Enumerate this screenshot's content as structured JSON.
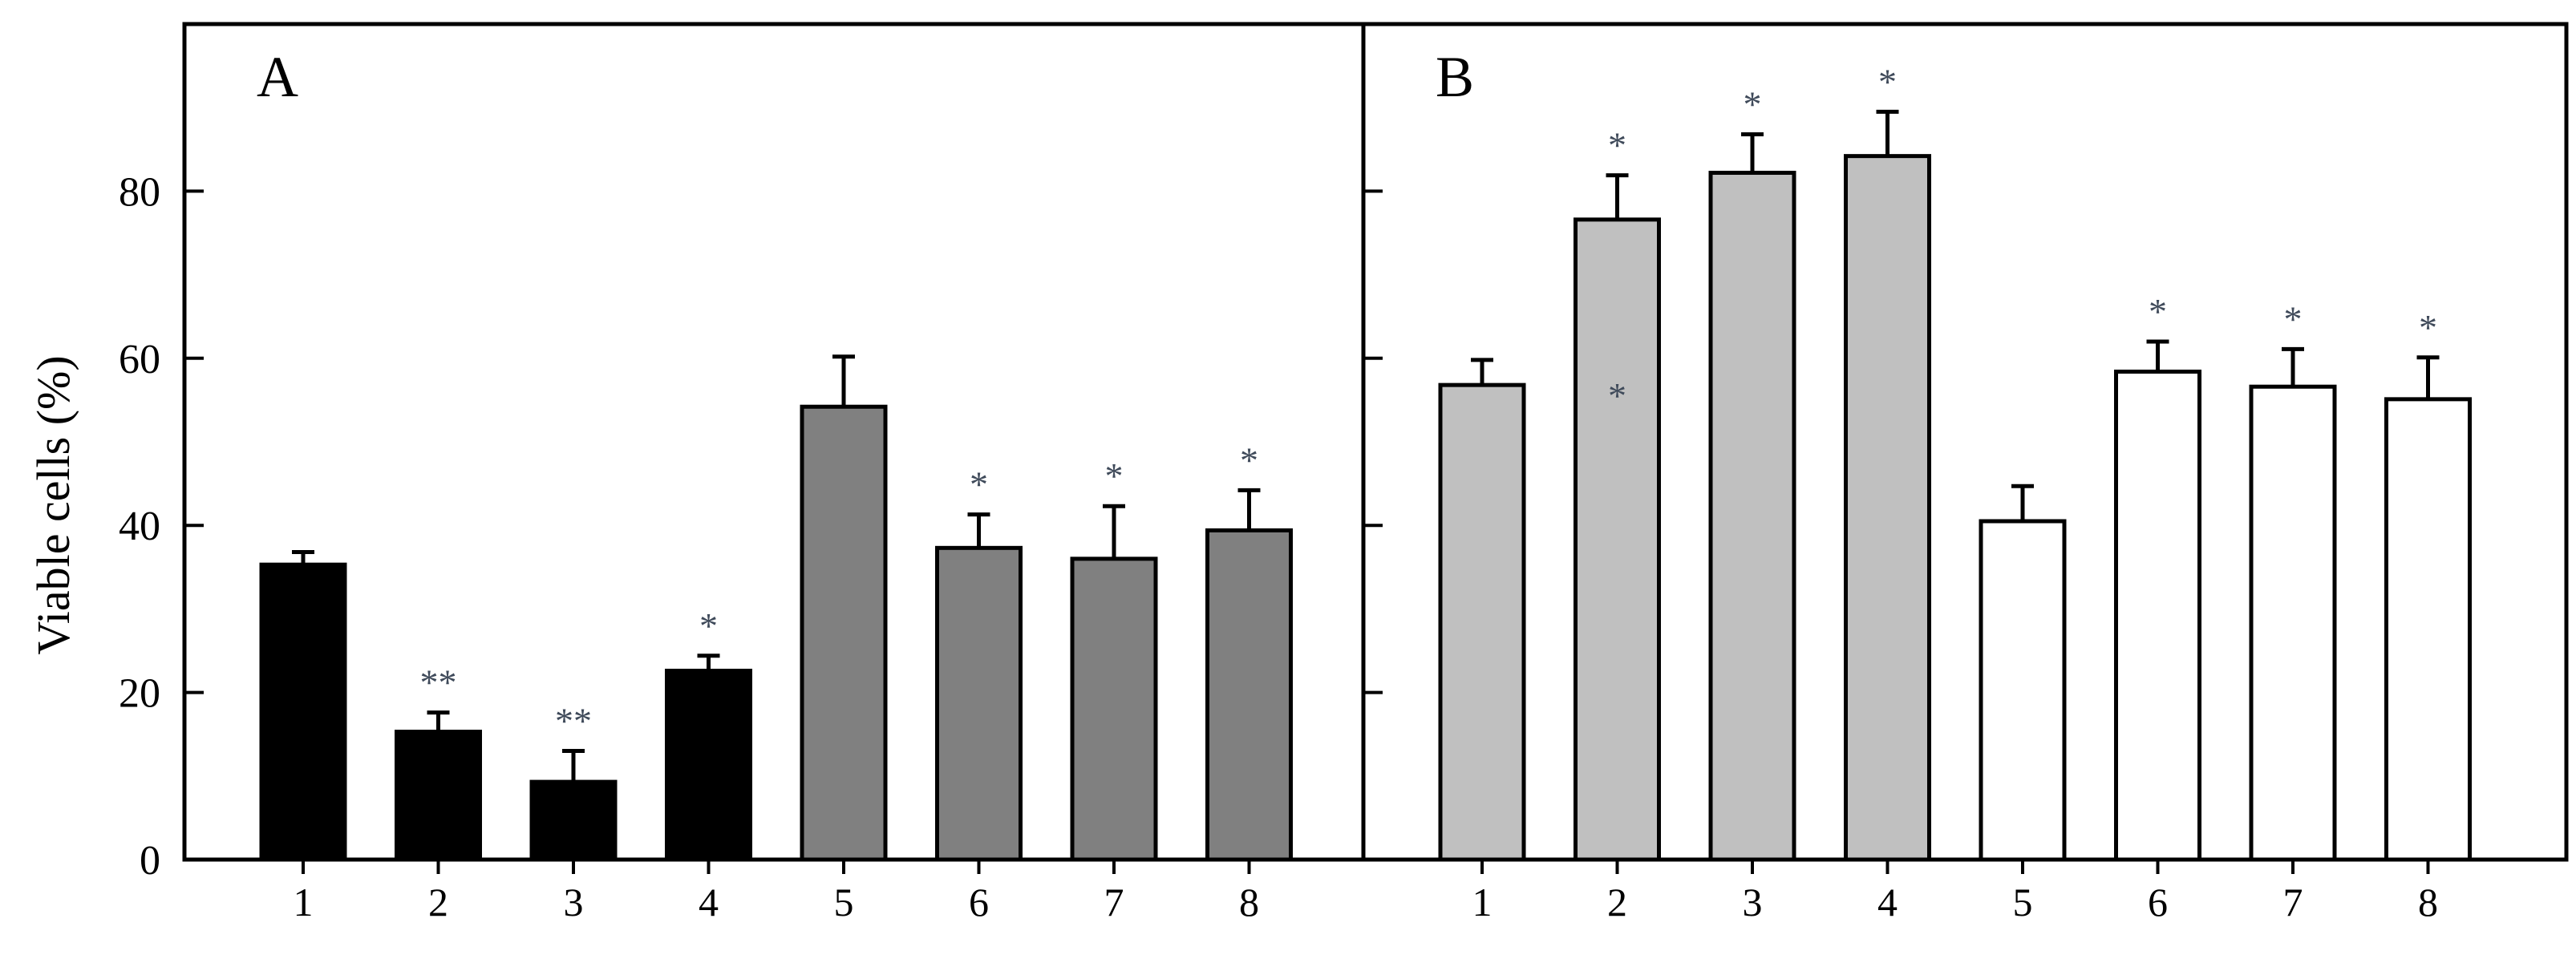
{
  "colors": {
    "axis": "#000000",
    "asterisk": "#3f4a5a"
  },
  "chart_data": [
    {
      "type": "bar",
      "panel_label": "A",
      "ylabel": "Viable cells (%)",
      "ylim": [
        0,
        100
      ],
      "yticks": [
        0,
        20,
        40,
        60,
        80
      ],
      "categories": [
        "1",
        "2",
        "3",
        "4",
        "5",
        "6",
        "7",
        "8"
      ],
      "values": [
        35.3,
        15.3,
        9.3,
        22.6,
        54.2,
        37.3,
        36.0,
        39.4
      ],
      "errors": [
        1.5,
        2.3,
        3.7,
        1.8,
        6.0,
        4.0,
        6.3,
        4.8
      ],
      "bar_colors": [
        "#000000",
        "#000000",
        "#000000",
        "#000000",
        "#808080",
        "#808080",
        "#808080",
        "#808080"
      ],
      "annotations": [
        "",
        "**",
        "**",
        "*",
        "",
        "*",
        "*",
        "*"
      ],
      "grid": false
    },
    {
      "type": "bar",
      "panel_label": "B",
      "ylim": [
        0,
        100
      ],
      "yticks": [
        0,
        20,
        40,
        60,
        80
      ],
      "categories": [
        "1",
        "2",
        "3",
        "4",
        "5",
        "6",
        "7",
        "8"
      ],
      "values": [
        56.8,
        76.6,
        82.2,
        84.2,
        40.5,
        58.4,
        56.6,
        55.1
      ],
      "errors": [
        3.0,
        5.3,
        4.6,
        5.3,
        4.2,
        3.6,
        4.5,
        5.0
      ],
      "bar_colors": [
        "#c0c0c0",
        "#c0c0c0",
        "#c0c0c0",
        "#c0c0c0",
        "#ffffff",
        "#ffffff",
        "#ffffff",
        "#ffffff"
      ],
      "annotations": [
        "",
        "*",
        "*",
        "*",
        "",
        "*",
        "*",
        "*"
      ],
      "inner_annotations": [
        "",
        "*",
        "",
        "",
        "",
        "",
        "",
        ""
      ],
      "grid": false
    }
  ]
}
